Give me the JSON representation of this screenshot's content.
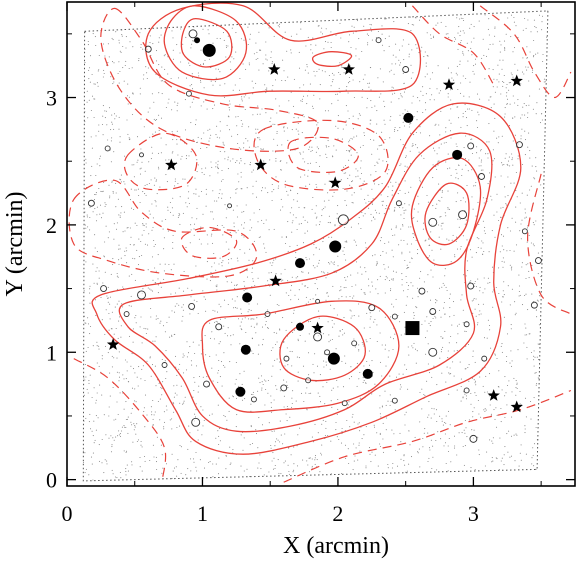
{
  "chart_data": {
    "type": "scatter",
    "title": "",
    "xlabel": "X (arcmin)",
    "ylabel": "Y (arcmin)",
    "xlim": [
      0,
      3.75
    ],
    "ylim": [
      -0.05,
      3.75
    ],
    "x_ticks": [
      "0",
      "1",
      "2",
      "3"
    ],
    "y_ticks": [
      "0",
      "1",
      "2",
      "3"
    ],
    "grid": false,
    "colors": {
      "contour": "#e8423a",
      "background_points": "#8a8a8a",
      "markers": "#000000",
      "frame": "#000000"
    },
    "survey_boundary": [
      [
        0.13,
        3.52
      ],
      [
        3.55,
        3.68
      ],
      [
        3.47,
        0.08
      ],
      [
        0.12,
        -0.01
      ]
    ],
    "contours": {
      "solid": [
        {
          "level": 1,
          "points": [
            [
              0.95,
              3.72
            ],
            [
              1.25,
              3.6
            ],
            [
              1.32,
              3.35
            ],
            [
              1.15,
              3.15
            ],
            [
              0.85,
              3.2
            ],
            [
              0.72,
              3.42
            ],
            [
              0.78,
              3.62
            ]
          ]
        },
        {
          "level": 2,
          "points": [
            [
              0.95,
              3.62
            ],
            [
              1.18,
              3.52
            ],
            [
              1.2,
              3.32
            ],
            [
              1.02,
              3.24
            ],
            [
              0.86,
              3.34
            ],
            [
              0.86,
              3.52
            ]
          ]
        },
        {
          "level": 1,
          "points": [
            [
              0.6,
              3.5
            ],
            [
              0.85,
              3.7
            ],
            [
              1.3,
              3.72
            ],
            [
              1.65,
              3.45
            ],
            [
              2.1,
              3.52
            ],
            [
              2.55,
              3.5
            ],
            [
              2.55,
              3.1
            ],
            [
              2.05,
              3.05
            ],
            [
              1.5,
              3.05
            ],
            [
              1.05,
              3.02
            ],
            [
              0.65,
              3.2
            ]
          ]
        },
        {
          "level": 3,
          "points": [
            [
              1.82,
              3.32
            ],
            [
              1.95,
              3.36
            ],
            [
              2.1,
              3.33
            ],
            [
              2.0,
              3.25
            ],
            [
              1.85,
              3.26
            ]
          ]
        },
        {
          "level": 1,
          "points": [
            [
              0.25,
              1.45
            ],
            [
              0.9,
              1.58
            ],
            [
              1.4,
              1.7
            ],
            [
              1.8,
              1.85
            ],
            [
              2.1,
              2.05
            ],
            [
              2.35,
              2.3
            ],
            [
              2.55,
              2.72
            ],
            [
              2.85,
              2.95
            ],
            [
              3.2,
              2.85
            ],
            [
              3.35,
              2.45
            ],
            [
              3.2,
              2.0
            ],
            [
              3.15,
              1.55
            ],
            [
              3.2,
              1.2
            ],
            [
              3.05,
              0.85
            ],
            [
              2.65,
              0.65
            ],
            [
              2.25,
              0.45
            ],
            [
              1.8,
              0.3
            ],
            [
              1.3,
              0.2
            ],
            [
              0.95,
              0.3
            ],
            [
              0.8,
              0.55
            ],
            [
              0.6,
              0.9
            ],
            [
              0.35,
              1.1
            ],
            [
              0.22,
              1.3
            ]
          ]
        },
        {
          "level": 2,
          "points": [
            [
              0.42,
              1.38
            ],
            [
              0.9,
              1.45
            ],
            [
              1.45,
              1.52
            ],
            [
              1.95,
              1.62
            ],
            [
              2.25,
              1.85
            ],
            [
              2.4,
              2.2
            ],
            [
              2.6,
              2.55
            ],
            [
              2.9,
              2.72
            ],
            [
              3.12,
              2.58
            ],
            [
              3.1,
              2.2
            ],
            [
              2.95,
              1.8
            ],
            [
              2.95,
              1.45
            ],
            [
              3.0,
              1.15
            ],
            [
              2.75,
              0.9
            ],
            [
              2.35,
              0.75
            ],
            [
              2.05,
              0.55
            ],
            [
              1.65,
              0.42
            ],
            [
              1.25,
              0.38
            ],
            [
              1.0,
              0.5
            ],
            [
              0.85,
              0.8
            ],
            [
              0.65,
              1.05
            ],
            [
              0.45,
              1.2
            ]
          ]
        },
        {
          "level": 3,
          "points": [
            [
              2.55,
              2.15
            ],
            [
              2.7,
              2.45
            ],
            [
              2.92,
              2.52
            ],
            [
              3.05,
              2.3
            ],
            [
              3.0,
              1.95
            ],
            [
              2.88,
              1.72
            ],
            [
              2.7,
              1.7
            ],
            [
              2.58,
              1.9
            ]
          ]
        },
        {
          "level": 4,
          "points": [
            [
              2.65,
              2.1
            ],
            [
              2.8,
              2.32
            ],
            [
              2.95,
              2.25
            ],
            [
              2.95,
              2.0
            ],
            [
              2.82,
              1.85
            ],
            [
              2.68,
              1.9
            ]
          ]
        },
        {
          "level": 3,
          "points": [
            [
              1.05,
              1.25
            ],
            [
              1.45,
              1.3
            ],
            [
              1.95,
              1.4
            ],
            [
              2.3,
              1.35
            ],
            [
              2.45,
              1.05
            ],
            [
              2.3,
              0.75
            ],
            [
              2.0,
              0.6
            ],
            [
              1.6,
              0.55
            ],
            [
              1.25,
              0.55
            ],
            [
              1.05,
              0.8
            ],
            [
              1.0,
              1.05
            ]
          ]
        },
        {
          "level": 4,
          "points": [
            [
              1.6,
              1.1
            ],
            [
              1.85,
              1.28
            ],
            [
              2.12,
              1.2
            ],
            [
              2.2,
              0.98
            ],
            [
              2.05,
              0.82
            ],
            [
              1.8,
              0.78
            ],
            [
              1.6,
              0.88
            ]
          ]
        }
      ],
      "dashed": [
        {
          "level": -1,
          "points": [
            [
              0.35,
              3.7
            ],
            [
              0.55,
              3.45
            ],
            [
              0.75,
              3.1
            ],
            [
              1.15,
              2.95
            ],
            [
              1.55,
              2.9
            ],
            [
              1.85,
              2.8
            ],
            [
              1.7,
              2.6
            ],
            [
              1.2,
              2.6
            ],
            [
              0.7,
              2.75
            ],
            [
              0.4,
              3.05
            ],
            [
              0.25,
              3.45
            ]
          ]
        },
        {
          "level": -1,
          "points": [
            [
              1.45,
              2.75
            ],
            [
              1.95,
              2.82
            ],
            [
              2.3,
              2.7
            ],
            [
              2.35,
              2.42
            ],
            [
              2.05,
              2.28
            ],
            [
              1.6,
              2.32
            ],
            [
              1.4,
              2.52
            ]
          ]
        },
        {
          "level": -2,
          "points": [
            [
              1.65,
              2.65
            ],
            [
              1.95,
              2.68
            ],
            [
              2.15,
              2.55
            ],
            [
              2.0,
              2.42
            ],
            [
              1.7,
              2.45
            ]
          ]
        },
        {
          "level": -1,
          "points": [
            [
              0.45,
              2.55
            ],
            [
              0.72,
              2.72
            ],
            [
              0.95,
              2.55
            ],
            [
              0.88,
              2.32
            ],
            [
              0.6,
              2.28
            ],
            [
              0.45,
              2.38
            ]
          ]
        },
        {
          "level": -1,
          "points": [
            [
              0.05,
              2.2
            ],
            [
              0.35,
              2.35
            ],
            [
              0.55,
              2.1
            ],
            [
              0.8,
              1.95
            ],
            [
              1.25,
              1.95
            ],
            [
              1.4,
              1.75
            ],
            [
              1.2,
              1.6
            ],
            [
              0.7,
              1.62
            ],
            [
              0.3,
              1.72
            ],
            [
              0.05,
              1.85
            ]
          ]
        },
        {
          "level": -2,
          "points": [
            [
              0.85,
              1.9
            ],
            [
              1.05,
              1.98
            ],
            [
              1.25,
              1.88
            ],
            [
              1.15,
              1.75
            ],
            [
              0.92,
              1.76
            ]
          ]
        },
        {
          "level": -1,
          "points": [
            [
              3.05,
              3.72
            ],
            [
              3.3,
              3.5
            ],
            [
              3.45,
              3.2
            ],
            [
              3.6,
              3.0
            ],
            [
              3.72,
              3.2
            ]
          ]
        },
        {
          "level": -1,
          "points": [
            [
              3.5,
              2.4
            ],
            [
              3.4,
              1.9
            ],
            [
              3.5,
              1.45
            ],
            [
              3.72,
              1.3
            ]
          ]
        },
        {
          "level": -1,
          "points": [
            [
              0.05,
              0.95
            ],
            [
              0.3,
              0.8
            ],
            [
              0.55,
              0.52
            ],
            [
              0.72,
              0.25
            ],
            [
              0.7,
              -0.02
            ]
          ]
        },
        {
          "level": -1,
          "points": [
            [
              1.6,
              -0.02
            ],
            [
              2.05,
              0.18
            ],
            [
              2.55,
              0.3
            ],
            [
              2.95,
              0.45
            ],
            [
              3.35,
              0.55
            ],
            [
              3.72,
              0.7
            ]
          ]
        },
        {
          "level": -1,
          "points": [
            [
              2.55,
              3.72
            ],
            [
              2.75,
              3.5
            ],
            [
              3.0,
              3.35
            ],
            [
              3.15,
              3.1
            ]
          ]
        }
      ]
    },
    "series": [
      {
        "marker": "filled-circle",
        "points": [
          [
            1.05,
            3.37,
            6.5
          ],
          [
            0.96,
            3.45,
            3
          ],
          [
            2.52,
            2.84,
            5
          ],
          [
            2.88,
            2.55,
            5
          ],
          [
            1.98,
            1.83,
            6
          ],
          [
            1.72,
            1.7,
            5
          ],
          [
            1.33,
            1.43,
            5
          ],
          [
            1.32,
            1.02,
            5
          ],
          [
            1.72,
            1.2,
            4
          ],
          [
            1.97,
            0.95,
            6
          ],
          [
            2.22,
            0.83,
            5
          ],
          [
            1.28,
            0.69,
            5
          ]
        ]
      },
      {
        "marker": "open-circle",
        "points": [
          [
            0.93,
            3.5,
            4
          ],
          [
            0.6,
            3.38,
            3
          ],
          [
            2.3,
            3.45,
            2.5
          ],
          [
            2.5,
            3.22,
            3
          ],
          [
            0.9,
            3.03,
            2.5
          ],
          [
            3.34,
            2.63,
            3
          ],
          [
            2.98,
            2.62,
            3
          ],
          [
            0.55,
            2.55,
            2
          ],
          [
            3.06,
            2.38,
            3
          ],
          [
            2.92,
            2.08,
            4
          ],
          [
            2.7,
            2.02,
            4
          ],
          [
            0.18,
            2.17,
            3
          ],
          [
            2.45,
            2.17,
            2.5
          ],
          [
            1.2,
            2.15,
            2
          ],
          [
            2.04,
            2.04,
            5
          ],
          [
            2.98,
            1.52,
            3
          ],
          [
            2.62,
            1.48,
            3
          ],
          [
            0.27,
            1.5,
            3
          ],
          [
            0.55,
            1.45,
            4
          ],
          [
            1.85,
            1.4,
            2
          ],
          [
            3.45,
            1.37,
            3
          ],
          [
            0.92,
            1.36,
            3
          ],
          [
            2.25,
            1.35,
            3
          ],
          [
            1.48,
            1.3,
            2.5
          ],
          [
            0.44,
            1.3,
            2.5
          ],
          [
            2.42,
            1.28,
            2.5
          ],
          [
            2.7,
            1.32,
            3
          ],
          [
            1.12,
            1.2,
            3
          ],
          [
            2.95,
            1.22,
            2.5
          ],
          [
            1.85,
            1.12,
            4
          ],
          [
            1.92,
            1.0,
            2.5
          ],
          [
            2.7,
            1.0,
            4
          ],
          [
            1.62,
            0.95,
            2.5
          ],
          [
            2.12,
            1.07,
            2.5
          ],
          [
            1.78,
            0.78,
            2.5
          ],
          [
            3.08,
            0.95,
            2.5
          ],
          [
            2.05,
            0.6,
            2.5
          ],
          [
            1.03,
            0.75,
            3
          ],
          [
            1.6,
            0.72,
            3
          ],
          [
            1.38,
            0.63,
            2.5
          ],
          [
            0.95,
            0.45,
            4
          ],
          [
            2.42,
            0.62,
            2.5
          ],
          [
            2.95,
            0.7,
            2.5
          ],
          [
            3.0,
            0.32,
            3.5
          ],
          [
            3.48,
            1.72,
            3
          ],
          [
            0.72,
            0.9,
            2.5
          ],
          [
            0.3,
            2.6,
            2.5
          ],
          [
            3.38,
            1.95,
            2.5
          ]
        ]
      },
      {
        "marker": "star",
        "points": [
          [
            1.53,
            3.22
          ],
          [
            2.08,
            3.22
          ],
          [
            2.82,
            3.1
          ],
          [
            3.32,
            3.13
          ],
          [
            0.77,
            2.47
          ],
          [
            1.43,
            2.47
          ],
          [
            1.98,
            2.33
          ],
          [
            1.54,
            1.56
          ],
          [
            1.85,
            1.19
          ],
          [
            0.34,
            1.06
          ],
          [
            3.15,
            0.66
          ],
          [
            3.32,
            0.57
          ]
        ]
      },
      {
        "marker": "filled-square",
        "points": [
          [
            2.55,
            1.19
          ]
        ]
      }
    ],
    "background_seed": 7,
    "background_count": 3800
  }
}
